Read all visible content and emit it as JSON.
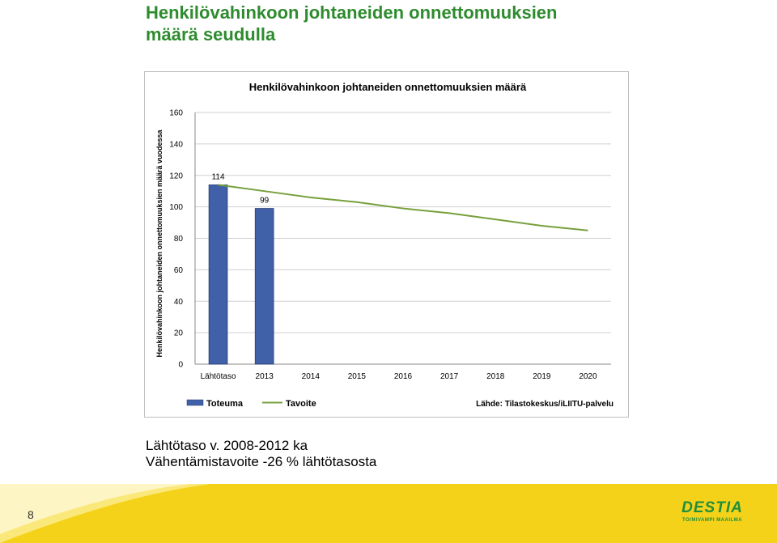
{
  "slide": {
    "title_line1": "Henkilövahinkoon johtaneiden onnettomuuksien",
    "title_line2": "määrä seudulla",
    "notes_line1": "Lähtötaso v. 2008-2012 ka",
    "notes_line2": "Vähentämistavoite -26 % lähtötasosta",
    "page_number": "8"
  },
  "logo": {
    "name": "DESTIA",
    "tagline": "TOIMIVAMPI MAAILMA",
    "color": "#1e8f3a"
  },
  "colors": {
    "title": "#2e8b2e",
    "bar": "#4060a8",
    "line": "#77a03c",
    "footer_yellow": "#f5d21a"
  },
  "chart_data": {
    "type": "bar",
    "title": "Henkilövahinkoon johtaneiden onnettomuuksien määrä",
    "ylabel": "Henkilövahinkoon johtaneiden onnettomuuksien määrä vuodessa",
    "xlabel": "",
    "categories": [
      "Lähtötaso",
      "2013",
      "2014",
      "2015",
      "2016",
      "2017",
      "2018",
      "2019",
      "2020"
    ],
    "ylim": [
      0,
      160
    ],
    "yticks": [
      0,
      20,
      40,
      60,
      80,
      100,
      120,
      140,
      160
    ],
    "grid": true,
    "legend_position": "bottom-left",
    "series": [
      {
        "name": "Toteuma",
        "type": "bar",
        "values": [
          114,
          99,
          null,
          null,
          null,
          null,
          null,
          null,
          null
        ],
        "data_labels": [
          "114",
          "99",
          "",
          "",
          "",
          "",
          "",
          "",
          ""
        ]
      },
      {
        "name": "Tavoite",
        "type": "line",
        "values": [
          114,
          110,
          106,
          103,
          99,
          96,
          92,
          88,
          85
        ]
      }
    ],
    "source_note": "Lähde: Tilastokeskus/iLIITU-palvelu"
  }
}
